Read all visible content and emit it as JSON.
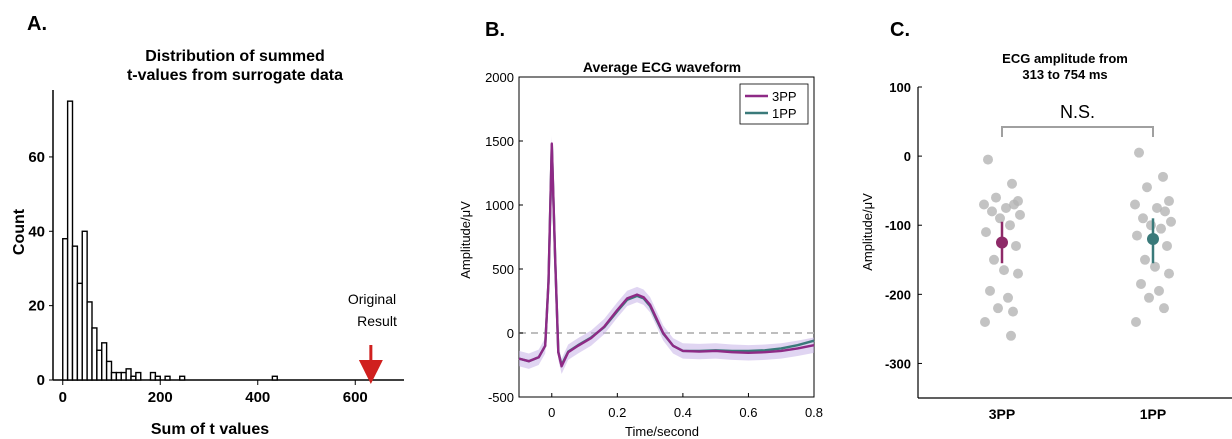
{
  "chart_data": [
    {
      "panel_label": "A.",
      "type": "bar",
      "title_lines": [
        "Distribution of summed",
        "t-values from surrogate data"
      ],
      "xlabel": "Sum of t values",
      "ylabel": "Count",
      "xlim": [
        -20,
        700
      ],
      "ylim": [
        0,
        78
      ],
      "xticks": [
        0,
        200,
        400,
        600
      ],
      "yticks": [
        0,
        20,
        40,
        60
      ],
      "bin_width": 10,
      "bins": [
        {
          "x": 0,
          "count": 38
        },
        {
          "x": 10,
          "count": 75
        },
        {
          "x": 20,
          "count": 36
        },
        {
          "x": 30,
          "count": 26
        },
        {
          "x": 40,
          "count": 40
        },
        {
          "x": 50,
          "count": 21
        },
        {
          "x": 60,
          "count": 14
        },
        {
          "x": 70,
          "count": 8
        },
        {
          "x": 80,
          "count": 10
        },
        {
          "x": 90,
          "count": 5
        },
        {
          "x": 100,
          "count": 2
        },
        {
          "x": 110,
          "count": 2
        },
        {
          "x": 120,
          "count": 2
        },
        {
          "x": 130,
          "count": 3
        },
        {
          "x": 140,
          "count": 1
        },
        {
          "x": 150,
          "count": 2
        },
        {
          "x": 180,
          "count": 2
        },
        {
          "x": 190,
          "count": 1
        },
        {
          "x": 210,
          "count": 1
        },
        {
          "x": 240,
          "count": 1
        },
        {
          "x": 430,
          "count": 1
        }
      ],
      "annotation": {
        "lines": [
          "Original",
          "Result"
        ],
        "x": 632,
        "arrow_color": "#d0201e"
      }
    },
    {
      "panel_label": "B.",
      "type": "line",
      "title": "Average ECG waveform",
      "xlabel": "Time/second",
      "ylabel": "Amplitude/μV",
      "xlim": [
        -0.1,
        0.8
      ],
      "ylim": [
        -500,
        2000
      ],
      "xticks": [
        0,
        0.2,
        0.4,
        0.6,
        0.8
      ],
      "yticks": [
        -500,
        0,
        500,
        1000,
        1500,
        2000
      ],
      "zero_line": "dashed",
      "legend_position": "top-right",
      "series": [
        {
          "name": "3PP",
          "color": "#8e2a86",
          "x": [
            -0.1,
            -0.07,
            -0.04,
            -0.02,
            -0.01,
            0.0,
            0.01,
            0.02,
            0.03,
            0.05,
            0.08,
            0.12,
            0.16,
            0.2,
            0.23,
            0.26,
            0.28,
            0.3,
            0.32,
            0.34,
            0.37,
            0.4,
            0.45,
            0.5,
            0.55,
            0.6,
            0.65,
            0.7,
            0.75,
            0.8
          ],
          "y": [
            -200,
            -220,
            -190,
            -100,
            400,
            1480,
            600,
            -150,
            -260,
            -150,
            -100,
            -40,
            50,
            180,
            270,
            300,
            280,
            220,
            110,
            0,
            -100,
            -140,
            -145,
            -140,
            -150,
            -155,
            -150,
            -140,
            -120,
            -95
          ]
        },
        {
          "name": "1PP",
          "color": "#3a7a7a",
          "x": [
            -0.1,
            -0.07,
            -0.04,
            -0.02,
            -0.01,
            0.0,
            0.01,
            0.02,
            0.03,
            0.05,
            0.08,
            0.12,
            0.16,
            0.2,
            0.23,
            0.26,
            0.28,
            0.3,
            0.32,
            0.34,
            0.37,
            0.4,
            0.45,
            0.5,
            0.55,
            0.6,
            0.65,
            0.7,
            0.75,
            0.8
          ],
          "y": [
            -200,
            -220,
            -190,
            -100,
            400,
            1470,
            590,
            -150,
            -250,
            -145,
            -95,
            -35,
            45,
            170,
            260,
            290,
            270,
            210,
            100,
            -5,
            -100,
            -140,
            -140,
            -135,
            -140,
            -140,
            -135,
            -120,
            -95,
            -60
          ]
        }
      ]
    },
    {
      "panel_label": "C.",
      "type": "scatter",
      "title_lines": [
        "ECG amplitude from",
        "313 to 754 ms"
      ],
      "ylabel": "Amplitude/μV",
      "categories": [
        "3PP",
        "1PP"
      ],
      "ylim": [
        -350,
        100
      ],
      "yticks": [
        -300,
        -200,
        -100,
        0,
        100
      ],
      "significance": "N.S.",
      "points": [
        {
          "category": "3PP",
          "values": [
            -5,
            -40,
            -60,
            -65,
            -70,
            -75,
            -70,
            -80,
            -85,
            -90,
            -100,
            -110,
            -130,
            -150,
            -165,
            -170,
            -195,
            -205,
            -220,
            -225,
            -240,
            -260
          ]
        },
        {
          "category": "1PP",
          "values": [
            5,
            -30,
            -45,
            -65,
            -70,
            -75,
            -80,
            -90,
            -95,
            -100,
            -105,
            -115,
            -130,
            -150,
            -160,
            -170,
            -185,
            -195,
            -205,
            -220,
            -240
          ]
        }
      ],
      "means": [
        {
          "category": "3PP",
          "mean": -125,
          "lower": -155,
          "upper": -95,
          "color": "#8e2a68"
        },
        {
          "category": "1PP",
          "mean": -120,
          "lower": -155,
          "upper": -90,
          "color": "#3a7a7a"
        }
      ]
    }
  ]
}
